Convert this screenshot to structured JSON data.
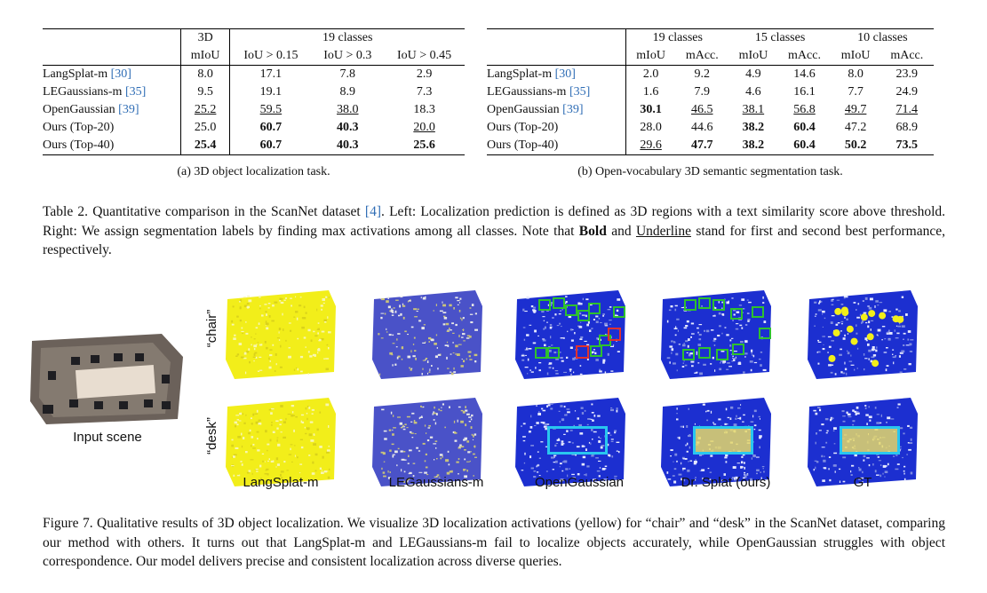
{
  "table_left": {
    "header_3d": "3D",
    "header_19": "19 classes",
    "subheaders": [
      "mIoU",
      "IoU > 0.15",
      "IoU > 0.3",
      "IoU > 0.45"
    ],
    "rows": [
      {
        "method": "LangSplat-m ",
        "ref": "[30]",
        "values": [
          "8.0",
          "17.1",
          "7.8",
          "2.9"
        ]
      },
      {
        "method": "LEGaussians-m ",
        "ref": "[35]",
        "values": [
          "9.5",
          "19.1",
          "8.9",
          "7.3"
        ]
      },
      {
        "method": "OpenGaussian ",
        "ref": "[39]",
        "values": [
          "25.2",
          "59.5",
          "38.0",
          "18.3"
        ]
      },
      {
        "method": "Ours (Top-20)",
        "ref": "",
        "values": [
          "25.0",
          "60.7",
          "40.3",
          "20.0"
        ]
      },
      {
        "method": "Ours (Top-40)",
        "ref": "",
        "values": [
          "25.4",
          "60.7",
          "40.3",
          "25.6"
        ]
      }
    ],
    "caption": "(a) 3D object localization task."
  },
  "table_right": {
    "groups": [
      "19 classes",
      "15 classes",
      "10 classes"
    ],
    "subheaders": [
      "mIoU",
      "mAcc.",
      "mIoU",
      "mAcc.",
      "mIoU",
      "mAcc."
    ],
    "rows": [
      {
        "method": "LangSplat-m ",
        "ref": "[30]",
        "values": [
          "2.0",
          "9.2",
          "4.9",
          "14.6",
          "8.0",
          "23.9"
        ]
      },
      {
        "method": "LEGaussians-m ",
        "ref": "[35]",
        "values": [
          "1.6",
          "7.9",
          "4.6",
          "16.1",
          "7.7",
          "24.9"
        ]
      },
      {
        "method": "OpenGaussian ",
        "ref": "[39]",
        "values": [
          "30.1",
          "46.5",
          "38.1",
          "56.8",
          "49.7",
          "71.4"
        ]
      },
      {
        "method": "Ours (Top-20)",
        "ref": "",
        "values": [
          "28.0",
          "44.6",
          "38.2",
          "60.4",
          "47.2",
          "68.9"
        ]
      },
      {
        "method": "Ours (Top-40)",
        "ref": "",
        "values": [
          "29.6",
          "47.7",
          "38.2",
          "60.4",
          "50.2",
          "73.5"
        ]
      }
    ],
    "caption": "(b) Open-vocabulary 3D semantic segmentation task."
  },
  "table_caption": {
    "prefix": "Table 2. Quantitative comparison in the ScanNet dataset ",
    "ref": "[4]",
    "middle": ". Left: Localization prediction is defined as 3D regions with a text similarity score above threshold. Right: We assign segmentation labels by finding max activations among all classes. Note that ",
    "bold_word": "Bold",
    "and": " and ",
    "underline_word": "Underline",
    "suffix": " stand for first and second best performance, respectively."
  },
  "figure": {
    "input_label": "Input scene",
    "row_labels": [
      "“chair”",
      "“desk”"
    ],
    "column_labels": [
      "LangSplat-m",
      "LEGaussians-m",
      "OpenGaussian",
      "Dr. Splat (ours)",
      "GT"
    ],
    "colors": {
      "activation": "#f2ee1a",
      "background": "#1c2fd0",
      "correct_box": "#2ec12e",
      "wrong_box": "#e0312e",
      "region_box": "#29c6ef"
    }
  },
  "figure_caption": "Figure 7. Qualitative results of 3D object localization. We visualize 3D localization activations (yellow) for “chair” and “desk” in the ScanNet dataset, comparing our method with others. It turns out that LangSplat-m and LEGaussians-m fail to localize objects accurately, while OpenGaussian struggles with object correspondence. Our model delivers precise and consistent localization across diverse queries."
}
